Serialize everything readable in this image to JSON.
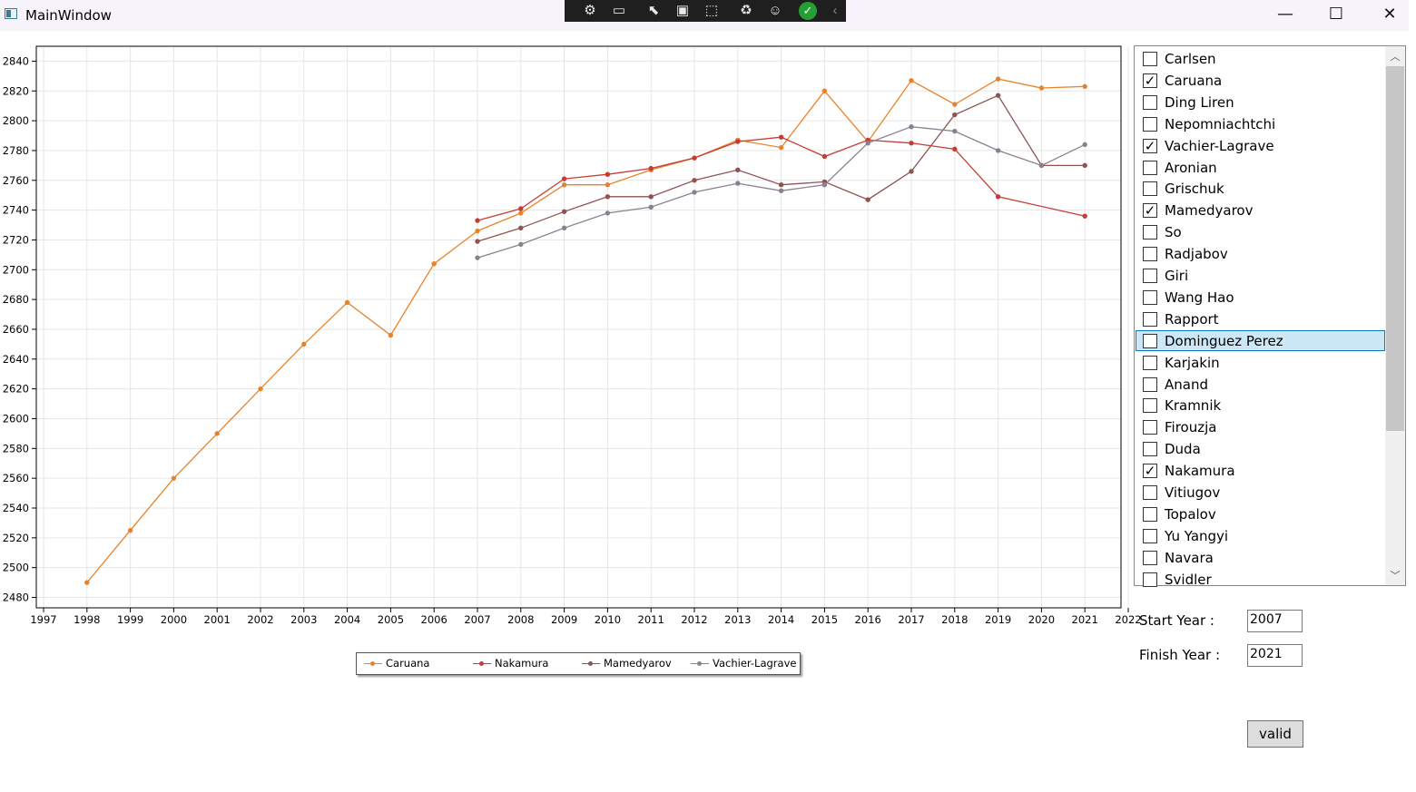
{
  "window": {
    "title": "MainWindow",
    "controls": {
      "minimize": "—",
      "maximize": "☐",
      "close": "✕"
    }
  },
  "debug_toolbar": {
    "icons": [
      "live-visual-tree-icon",
      "record-icon",
      "select-element-icon",
      "display-adorners-icon",
      "track-focus-icon",
      "hot-reload-icon",
      "accessibility-icon",
      "ok-check-icon",
      "collapse-icon"
    ]
  },
  "chart_data": {
    "type": "line",
    "x_ticks": [
      1997,
      1998,
      1999,
      2000,
      2001,
      2002,
      2003,
      2004,
      2005,
      2006,
      2007,
      2008,
      2009,
      2010,
      2011,
      2012,
      2013,
      2014,
      2015,
      2016,
      2017,
      2018,
      2019,
      2020,
      2021,
      2022
    ],
    "y_ticks": [
      2480,
      2500,
      2520,
      2540,
      2560,
      2580,
      2600,
      2620,
      2640,
      2660,
      2680,
      2700,
      2720,
      2740,
      2760,
      2780,
      2800,
      2820,
      2840
    ],
    "xlim": [
      1997,
      2022
    ],
    "ylim": [
      2473,
      2850
    ],
    "grid": true,
    "legend_position": "bottom",
    "series": [
      {
        "name": "Caruana",
        "color": "#e8832a",
        "x": [
          1998,
          1999,
          2000,
          2001,
          2002,
          2003,
          2004,
          2005,
          2006,
          2007,
          2008,
          2009,
          2010,
          2011,
          2012,
          2013,
          2014,
          2015,
          2016,
          2017,
          2018,
          2019,
          2020,
          2021
        ],
        "y": [
          2490,
          2525,
          2560,
          2590,
          2620,
          2650,
          2678,
          2656,
          2704,
          2726,
          2738,
          2757,
          2757,
          2767,
          2775,
          2787,
          2782,
          2820,
          2786,
          2827,
          2811,
          2828,
          2822,
          2823
        ]
      },
      {
        "name": "Nakamura",
        "color": "#c73b35",
        "x": [
          2007,
          2008,
          2009,
          2010,
          2011,
          2012,
          2013,
          2014,
          2015,
          2016,
          2017,
          2018,
          2019,
          2021
        ],
        "y": [
          2733,
          2741,
          2761,
          2764,
          2768,
          2775,
          2786,
          2789,
          2776,
          2787,
          2785,
          2781,
          2749,
          2736
        ]
      },
      {
        "name": "Mamedyarov",
        "color": "#8e5353",
        "x": [
          2007,
          2008,
          2009,
          2010,
          2011,
          2012,
          2013,
          2014,
          2015,
          2016,
          2017,
          2018,
          2019,
          2020,
          2021
        ],
        "y": [
          2719,
          2728,
          2739,
          2749,
          2749,
          2760,
          2767,
          2757,
          2759,
          2747,
          2766,
          2804,
          2817,
          2770,
          2770
        ]
      },
      {
        "name": "Vachier-Lagrave",
        "color": "#8c8090",
        "x": [
          2007,
          2008,
          2009,
          2010,
          2011,
          2012,
          2013,
          2014,
          2015,
          2016,
          2017,
          2018,
          2019,
          2020,
          2021
        ],
        "y": [
          2708,
          2717,
          2728,
          2738,
          2742,
          2752,
          2758,
          2753,
          2757,
          2785,
          2796,
          2793,
          2780,
          2770,
          2784
        ]
      }
    ]
  },
  "players": [
    {
      "name": "Carlsen",
      "checked": false
    },
    {
      "name": "Caruana",
      "checked": true
    },
    {
      "name": "Ding Liren",
      "checked": false
    },
    {
      "name": "Nepomniachtchi",
      "checked": false
    },
    {
      "name": "Vachier-Lagrave",
      "checked": true
    },
    {
      "name": "Aronian",
      "checked": false
    },
    {
      "name": "Grischuk",
      "checked": false
    },
    {
      "name": "Mamedyarov",
      "checked": true
    },
    {
      "name": "So",
      "checked": false
    },
    {
      "name": "Radjabov",
      "checked": false
    },
    {
      "name": "Giri",
      "checked": false
    },
    {
      "name": "Wang Hao",
      "checked": false
    },
    {
      "name": "Rapport",
      "checked": false
    },
    {
      "name": "Dominguez Perez",
      "checked": false,
      "selected": true
    },
    {
      "name": "Karjakin",
      "checked": false
    },
    {
      "name": "Anand",
      "checked": false
    },
    {
      "name": "Kramnik",
      "checked": false
    },
    {
      "name": "Firouzja",
      "checked": false
    },
    {
      "name": "Duda",
      "checked": false
    },
    {
      "name": "Nakamura",
      "checked": true
    },
    {
      "name": "Vitiugov",
      "checked": false
    },
    {
      "name": "Topalov",
      "checked": false
    },
    {
      "name": "Yu Yangyi",
      "checked": false
    },
    {
      "name": "Navara",
      "checked": false
    },
    {
      "name": "Svidler",
      "checked": false
    }
  ],
  "form": {
    "start_label": "Start Year :",
    "start_value": "2007",
    "finish_label": "Finish Year :",
    "finish_value": "2021",
    "submit_label": "valid"
  }
}
